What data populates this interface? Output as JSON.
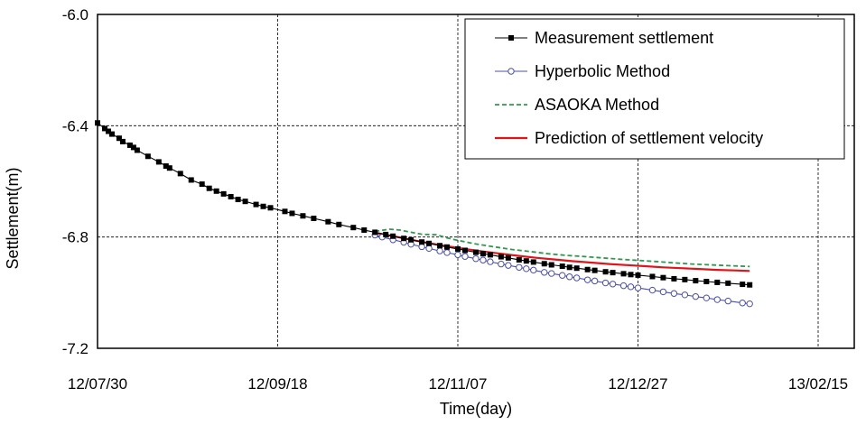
{
  "chart_data": {
    "type": "line",
    "xlabel": "Time(day)",
    "ylabel": "Settlement(m)",
    "xlim": [
      "12/07/30",
      "13/02/15"
    ],
    "ylim": [
      -7.2,
      -6.0
    ],
    "x_ticks": [
      "12/07/30",
      "12/09/18",
      "12/11/07",
      "12/12/27",
      "13/02/15"
    ],
    "y_ticks": [
      "-6.0",
      "-6.4",
      "-6.8",
      "-7.2"
    ],
    "grid": true,
    "legend_position": "top-right",
    "series": [
      {
        "name": "Measurement settlement",
        "color": "#000000",
        "marker": "square",
        "points": [
          [
            "12/07/30",
            -6.39
          ],
          [
            "12/08/01",
            -6.41
          ],
          [
            "12/08/02",
            -6.42
          ],
          [
            "12/08/03",
            -6.43
          ],
          [
            "12/08/05",
            -6.445
          ],
          [
            "12/08/06",
            -6.457
          ],
          [
            "12/08/08",
            -6.47
          ],
          [
            "12/08/09",
            -6.478
          ],
          [
            "12/08/10",
            -6.488
          ],
          [
            "12/08/13",
            -6.51
          ],
          [
            "12/08/16",
            -6.53
          ],
          [
            "12/08/18",
            -6.545
          ],
          [
            "12/08/19",
            -6.552
          ],
          [
            "12/08/22",
            -6.572
          ],
          [
            "12/08/25",
            -6.595
          ],
          [
            "12/08/28",
            -6.61
          ],
          [
            "12/08/30",
            -6.625
          ],
          [
            "12/09/01",
            -6.635
          ],
          [
            "12/09/03",
            -6.645
          ],
          [
            "12/09/05",
            -6.655
          ],
          [
            "12/09/07",
            -6.665
          ],
          [
            "12/09/09",
            -6.672
          ],
          [
            "12/09/12",
            -6.683
          ],
          [
            "12/09/14",
            -6.69
          ],
          [
            "12/09/16",
            -6.695
          ],
          [
            "12/09/20",
            -6.708
          ],
          [
            "12/09/22",
            -6.715
          ],
          [
            "12/09/25",
            -6.724
          ],
          [
            "12/09/28",
            -6.733
          ],
          [
            "12/10/02",
            -6.745
          ],
          [
            "12/10/05",
            -6.755
          ],
          [
            "12/10/09",
            -6.766
          ],
          [
            "12/10/12",
            -6.775
          ],
          [
            "12/10/15",
            -6.783
          ],
          [
            "12/10/18",
            -6.791
          ],
          [
            "12/10/20",
            -6.797
          ],
          [
            "12/10/23",
            -6.805
          ],
          [
            "12/10/25",
            -6.81
          ],
          [
            "12/10/28",
            -6.818
          ],
          [
            "12/10/30",
            -6.823
          ],
          [
            "12/11/02",
            -6.831
          ],
          [
            "12/11/04",
            -6.836
          ],
          [
            "12/11/07",
            -6.843
          ],
          [
            "12/11/09",
            -6.848
          ],
          [
            "12/11/12",
            -6.855
          ],
          [
            "12/11/14",
            -6.86
          ],
          [
            "12/11/16",
            -6.864
          ],
          [
            "12/11/19",
            -6.871
          ],
          [
            "12/11/21",
            -6.875
          ],
          [
            "12/11/24",
            -6.882
          ],
          [
            "12/11/26",
            -6.886
          ],
          [
            "12/11/28",
            -6.89
          ],
          [
            "12/12/01",
            -6.896
          ],
          [
            "12/12/03",
            -6.9
          ],
          [
            "12/12/06",
            -6.905
          ],
          [
            "12/12/08",
            -6.909
          ],
          [
            "12/12/10",
            -6.912
          ],
          [
            "12/12/13",
            -6.917
          ],
          [
            "12/12/15",
            -6.92
          ],
          [
            "12/12/18",
            -6.925
          ],
          [
            "12/12/20",
            -6.928
          ],
          [
            "12/12/23",
            -6.932
          ],
          [
            "12/12/25",
            -6.935
          ],
          [
            "12/12/27",
            -6.937
          ],
          [
            "12/12/31",
            -6.942
          ],
          [
            "13/01/03",
            -6.946
          ],
          [
            "13/01/06",
            -6.95
          ],
          [
            "13/01/09",
            -6.953
          ],
          [
            "13/01/12",
            -6.957
          ],
          [
            "13/01/15",
            -6.96
          ],
          [
            "13/01/18",
            -6.963
          ],
          [
            "13/01/21",
            -6.966
          ],
          [
            "13/01/25",
            -6.97
          ],
          [
            "13/01/27",
            -6.972
          ]
        ]
      },
      {
        "name": "Hyperbolic Method",
        "color": "#4a4fb0",
        "marker": "circle",
        "points": [
          [
            "12/10/15",
            -6.793
          ],
          [
            "12/10/17",
            -6.8
          ],
          [
            "12/10/20",
            -6.81
          ],
          [
            "12/10/23",
            -6.819
          ],
          [
            "12/10/25",
            -6.826
          ],
          [
            "12/10/28",
            -6.835
          ],
          [
            "12/10/30",
            -6.841
          ],
          [
            "12/11/02",
            -6.85
          ],
          [
            "12/11/04",
            -6.856
          ],
          [
            "12/11/07",
            -6.864
          ],
          [
            "12/11/09",
            -6.87
          ],
          [
            "12/11/12",
            -6.878
          ],
          [
            "12/11/14",
            -6.883
          ],
          [
            "12/11/16",
            -6.889
          ],
          [
            "12/11/19",
            -6.897
          ],
          [
            "12/11/21",
            -6.902
          ],
          [
            "12/11/24",
            -6.909
          ],
          [
            "12/11/26",
            -6.914
          ],
          [
            "12/11/28",
            -6.919
          ],
          [
            "12/12/01",
            -6.927
          ],
          [
            "12/12/03",
            -6.931
          ],
          [
            "12/12/06",
            -6.938
          ],
          [
            "12/12/08",
            -6.943
          ],
          [
            "12/12/10",
            -6.947
          ],
          [
            "12/12/13",
            -6.954
          ],
          [
            "12/12/15",
            -6.958
          ],
          [
            "12/12/18",
            -6.965
          ],
          [
            "12/12/20",
            -6.969
          ],
          [
            "12/12/23",
            -6.975
          ],
          [
            "12/12/25",
            -6.979
          ],
          [
            "12/12/27",
            -6.983
          ],
          [
            "12/12/31",
            -6.991
          ],
          [
            "13/01/03",
            -6.997
          ],
          [
            "13/01/06",
            -7.003
          ],
          [
            "13/01/09",
            -7.008
          ],
          [
            "13/01/12",
            -7.014
          ],
          [
            "13/01/15",
            -7.019
          ],
          [
            "13/01/18",
            -7.025
          ],
          [
            "13/01/21",
            -7.03
          ],
          [
            "13/01/25",
            -7.037
          ],
          [
            "13/01/27",
            -7.04
          ]
        ]
      },
      {
        "name": "ASAOKA Method",
        "color": "#2e9b4a",
        "marker": "none",
        "points": [
          [
            "12/10/15",
            -6.78
          ],
          [
            "12/10/19",
            -6.772
          ],
          [
            "12/10/22",
            -6.775
          ],
          [
            "12/10/25",
            -6.783
          ],
          [
            "12/10/28",
            -6.79
          ],
          [
            "12/11/01",
            -6.792
          ],
          [
            "12/11/04",
            -6.803
          ],
          [
            "12/11/07",
            -6.812
          ],
          [
            "12/11/12",
            -6.825
          ],
          [
            "12/11/17",
            -6.835
          ],
          [
            "12/11/22",
            -6.845
          ],
          [
            "12/11/27",
            -6.852
          ],
          [
            "12/12/02",
            -6.86
          ],
          [
            "12/12/07",
            -6.866
          ],
          [
            "12/12/12",
            -6.87
          ],
          [
            "12/12/17",
            -6.875
          ],
          [
            "12/12/22",
            -6.88
          ],
          [
            "12/12/27",
            -6.884
          ],
          [
            "13/01/01",
            -6.888
          ],
          [
            "13/01/06",
            -6.893
          ],
          [
            "13/01/11",
            -6.897
          ],
          [
            "13/01/16",
            -6.9
          ],
          [
            "13/01/21",
            -6.903
          ],
          [
            "13/01/27",
            -6.906
          ]
        ]
      },
      {
        "name": "Prediction of settlement velocity",
        "color": "#e0151b",
        "marker": "none",
        "points": [
          [
            "12/10/15",
            -6.785
          ],
          [
            "12/10/20",
            -6.797
          ],
          [
            "12/10/25",
            -6.81
          ],
          [
            "12/10/30",
            -6.822
          ],
          [
            "12/11/04",
            -6.833
          ],
          [
            "12/11/09",
            -6.843
          ],
          [
            "12/11/14",
            -6.852
          ],
          [
            "12/11/19",
            -6.86
          ],
          [
            "12/11/24",
            -6.868
          ],
          [
            "12/11/29",
            -6.875
          ],
          [
            "12/12/04",
            -6.881
          ],
          [
            "12/12/09",
            -6.887
          ],
          [
            "12/12/14",
            -6.892
          ],
          [
            "12/12/19",
            -6.897
          ],
          [
            "12/12/24",
            -6.901
          ],
          [
            "12/12/29",
            -6.905
          ],
          [
            "13/01/03",
            -6.909
          ],
          [
            "13/01/08",
            -6.912
          ],
          [
            "13/01/13",
            -6.915
          ],
          [
            "13/01/18",
            -6.918
          ],
          [
            "13/01/23",
            -6.92
          ],
          [
            "13/01/27",
            -6.922
          ]
        ]
      }
    ]
  }
}
